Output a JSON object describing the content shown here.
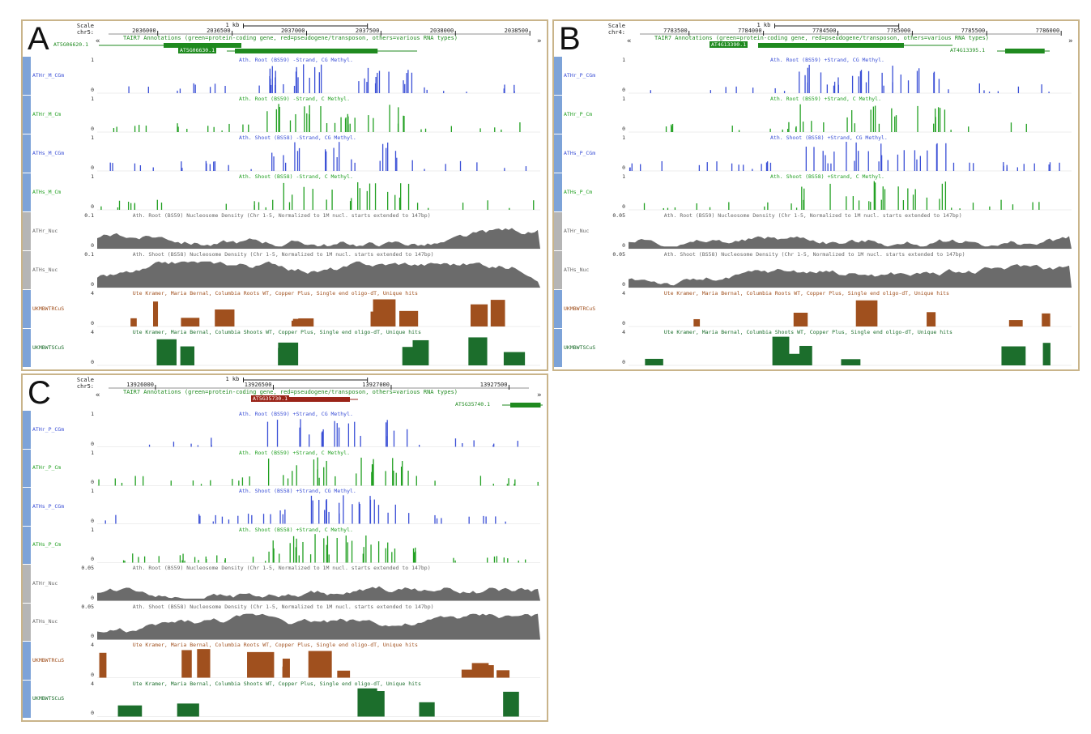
{
  "figure": {
    "panels": [
      {
        "letter": "A",
        "chr": "chr5:",
        "scale_label": "Scale",
        "scale_bar": "1 kb",
        "ticks": [
          "2036000",
          "2036500",
          "2037000",
          "2037500",
          "2038000",
          "2038500"
        ],
        "annotation_title": "TAIR7 Annotations (green=protein-coding gene, red=pseudogene/transposon, others=various RNA types)",
        "genes": [
          {
            "name": "AT5G06620.1",
            "color": "#1f8a1f",
            "strand": "-"
          },
          {
            "name": "AT5G06630.1",
            "color": "#1f8a1f",
            "strand": "-"
          }
        ],
        "tracks": [
          {
            "label": "ATHr_M_CGm",
            "title": "Ath. Root (BS59) -Strand, CG Methyl.",
            "type": "bars",
            "color": "#3a4fd6",
            "ymax": "1",
            "ymin": "0"
          },
          {
            "label": "ATHr_M_Cm",
            "title": "Ath. Root (BS59) -Strand, C Methyl.",
            "type": "bars",
            "color": "#22a022",
            "ymax": "1",
            "ymin": "0"
          },
          {
            "label": "ATHs_M_CGm",
            "title": "Ath. Shoot (BS58) -Strand, CG Methyl.",
            "type": "bars",
            "color": "#3a4fd6",
            "ymax": "1",
            "ymin": "0"
          },
          {
            "label": "ATHs_M_Cm",
            "title": "Ath. Shoot (BS58) -Strand, C Methyl.",
            "type": "bars",
            "color": "#22a022",
            "ymax": "1",
            "ymin": "0"
          },
          {
            "label": "ATHr_Nuc",
            "title": "Ath. Root (BS59) Nucleosome Density (Chr 1-5, Normalized to 1M nucl. starts extended to 147bp)",
            "type": "area",
            "color": "#6b6b6b",
            "ymax": "0.1",
            "ymin": "0"
          },
          {
            "label": "ATHs_Nuc",
            "title": "Ath. Shoot (BS58) Nucleosome Density (Chr 1-5, Normalized to 1M nucl. starts extended to 147bp)",
            "type": "area",
            "color": "#6b6b6b",
            "ymax": "0.1",
            "ymin": "0"
          },
          {
            "label": "UKMBWTRCuS",
            "title": "Ute Kramer, Maria Bernal, Columbia Roots WT, Copper Plus, Single end oligo-dT, Unique hits",
            "type": "blocks",
            "color": "#a0501e",
            "ymax": "4",
            "ymin": "0"
          },
          {
            "label": "UKMBWTSCuS",
            "title": "Ute Kramer, Maria Bernal, Columbia Shoots WT, Copper Plus, Single end oligo-dT, Unique hits",
            "type": "blocks",
            "color": "#1c6e2c",
            "ymax": "4",
            "ymin": "0"
          }
        ]
      },
      {
        "letter": "B",
        "chr": "chr4:",
        "scale_label": "Scale",
        "scale_bar": "1 kb",
        "ticks": [
          "7783500",
          "7784000",
          "7784500",
          "7785000",
          "7785500",
          "7786000"
        ],
        "annotation_title": "TAIR7 Annotations (green=protein-coding gene, red=pseudogene/transposon, others=various RNA types)",
        "genes": [
          {
            "name": "AT4G13390.1",
            "color": "#1f8a1f",
            "strand": "+"
          },
          {
            "name": "AT4G13395.1",
            "color": "#1f8a1f",
            "strand": "-"
          }
        ],
        "tracks": [
          {
            "label": "ATHr_P_CGm",
            "title": "Ath. Root (BS59) +Strand, CG Methyl.",
            "type": "bars",
            "color": "#3a4fd6",
            "ymax": "1",
            "ymin": "0"
          },
          {
            "label": "ATHr_P_Cm",
            "title": "Ath. Root (BS59) +Strand, C Methyl.",
            "type": "bars",
            "color": "#22a022",
            "ymax": "1",
            "ymin": "0"
          },
          {
            "label": "ATHs_P_CGm",
            "title": "Ath. Shoot (BS58) +Strand, CG Methyl.",
            "type": "bars",
            "color": "#3a4fd6",
            "ymax": "1",
            "ymin": "0"
          },
          {
            "label": "ATHs_P_Cm",
            "title": "Ath. Shoot (BS58) +Strand, C Methyl.",
            "type": "bars",
            "color": "#22a022",
            "ymax": "1",
            "ymin": "0"
          },
          {
            "label": "ATHr_Nuc",
            "title": "Ath. Root (BS59) Nucleosome Density (Chr 1-5, Normalized to 1M nucl. starts extended to 147bp)",
            "type": "area",
            "color": "#6b6b6b",
            "ymax": "0.05",
            "ymin": "0"
          },
          {
            "label": "ATHs_Nuc",
            "title": "Ath. Shoot (BS58) Nucleosome Density (Chr 1-5, Normalized to 1M nucl. starts extended to 147bp)",
            "type": "area",
            "color": "#6b6b6b",
            "ymax": "0.05",
            "ymin": "0"
          },
          {
            "label": "UKMBWTRCuS",
            "title": "Ute Kramer, Maria Bernal, Columbia Roots WT, Copper Plus, Single end oligo-dT, Unique hits",
            "type": "blocks",
            "color": "#a0501e",
            "ymax": "4",
            "ymin": "0"
          },
          {
            "label": "UKMBWTSCuS",
            "title": "Ute Kramer, Maria Bernal, Columbia Shoots WT, Copper Plus, Single end oligo-dT, Unique hits",
            "type": "blocks",
            "color": "#1c6e2c",
            "ymax": "4",
            "ymin": "0"
          }
        ]
      },
      {
        "letter": "C",
        "chr": "chr5:",
        "scale_label": "Scale",
        "scale_bar": "1 kb",
        "ticks": [
          "13926000",
          "13926500",
          "13927000",
          "13927500"
        ],
        "annotation_title": "TAIR7 Annotations (green=protein-coding gene, red=pseudogene/transposon, others=various RNA types)",
        "genes": [
          {
            "name": "AT5G35730.1",
            "color": "#9a2418",
            "strand": "+"
          },
          {
            "name": "AT5G35740.1",
            "color": "#1f8a1f",
            "strand": "-"
          }
        ],
        "tracks": [
          {
            "label": "ATHr_P_CGm",
            "title": "Ath. Root (BS59) +Strand, CG Methyl.",
            "type": "bars",
            "color": "#3a4fd6",
            "ymax": "1",
            "ymin": "0"
          },
          {
            "label": "ATHr_P_Cm",
            "title": "Ath. Root (BS59) +Strand, C Methyl.",
            "type": "bars",
            "color": "#22a022",
            "ymax": "1",
            "ymin": "0"
          },
          {
            "label": "ATHs_P_CGm",
            "title": "Ath. Shoot (BS58) +Strand, CG Methyl.",
            "type": "bars",
            "color": "#3a4fd6",
            "ymax": "1",
            "ymin": "0"
          },
          {
            "label": "ATHs_P_Cm",
            "title": "Ath. Shoot (BS58) +Strand, C Methyl.",
            "type": "bars",
            "color": "#22a022",
            "ymax": "1",
            "ymin": "0"
          },
          {
            "label": "ATHr_Nuc",
            "title": "Ath. Root (BS59) Nucleosome Density (Chr 1-5, Normalized to 1M nucl. starts extended to 147bp)",
            "type": "area",
            "color": "#6b6b6b",
            "ymax": "0.05",
            "ymin": "0"
          },
          {
            "label": "ATHs_Nuc",
            "title": "Ath. Shoot (BS58) Nucleosome Density (Chr 1-5, Normalized to 1M nucl. starts extended to 147bp)",
            "type": "area",
            "color": "#6b6b6b",
            "ymax": "0.05",
            "ymin": "0"
          },
          {
            "label": "UKMBWTRCuS",
            "title": "Ute Kramer, Maria Bernal, Columbia Roots WT, Copper Plus, Single end oligo-dT, Unique hits",
            "type": "blocks",
            "color": "#a0501e",
            "ymax": "4",
            "ymin": "0"
          },
          {
            "label": "UKMBWTSCuS",
            "title": "Ute Kramer, Maria Bernal, Columbia Shoots WT, Copper Plus, Single end oligo-dT, Unique hits",
            "type": "blocks",
            "color": "#1c6e2c",
            "ymax": "4",
            "ymin": "0"
          }
        ]
      }
    ]
  }
}
